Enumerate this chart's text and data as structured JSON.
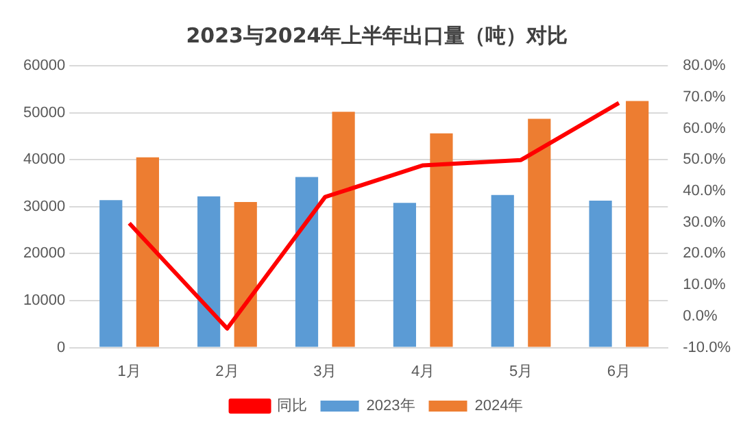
{
  "chart_data": {
    "type": "bar",
    "title": "2023与2024年上半年出口量（吨）对比",
    "categories": [
      "1月",
      "2月",
      "3月",
      "4月",
      "5月",
      "6月"
    ],
    "series": [
      {
        "name": "2023年",
        "color": "#5b9bd5",
        "values": [
          31400,
          32200,
          36300,
          30800,
          32500,
          31300
        ]
      },
      {
        "name": "2024年",
        "color": "#ed7d31",
        "values": [
          40500,
          31000,
          50200,
          45600,
          48700,
          52500
        ]
      },
      {
        "name": "同比",
        "type": "line",
        "axis": "y2",
        "color": "#ff0000",
        "values": [
          29.7,
          -3.9,
          38.1,
          48.2,
          49.9,
          68.1
        ]
      }
    ],
    "ylim": [
      0,
      60000
    ],
    "yticks": [
      0,
      10000,
      20000,
      30000,
      40000,
      50000,
      60000
    ],
    "y2lim": [
      -10,
      80
    ],
    "y2ticks": [
      {
        "value": -10,
        "label": "-10.0%"
      },
      {
        "value": 0,
        "label": "0.0%"
      },
      {
        "value": 10,
        "label": "10.0%"
      },
      {
        "value": 20,
        "label": "20.0%"
      },
      {
        "value": 30,
        "label": "30.0%"
      },
      {
        "value": 40,
        "label": "40.0%"
      },
      {
        "value": 50,
        "label": "50.0%"
      },
      {
        "value": 60,
        "label": "60.0%"
      },
      {
        "value": 70,
        "label": "70.0%"
      },
      {
        "value": 80,
        "label": "80.0%"
      }
    ],
    "grid": "y",
    "legend": "bottom",
    "marker": "none",
    "line_style": "solid"
  }
}
